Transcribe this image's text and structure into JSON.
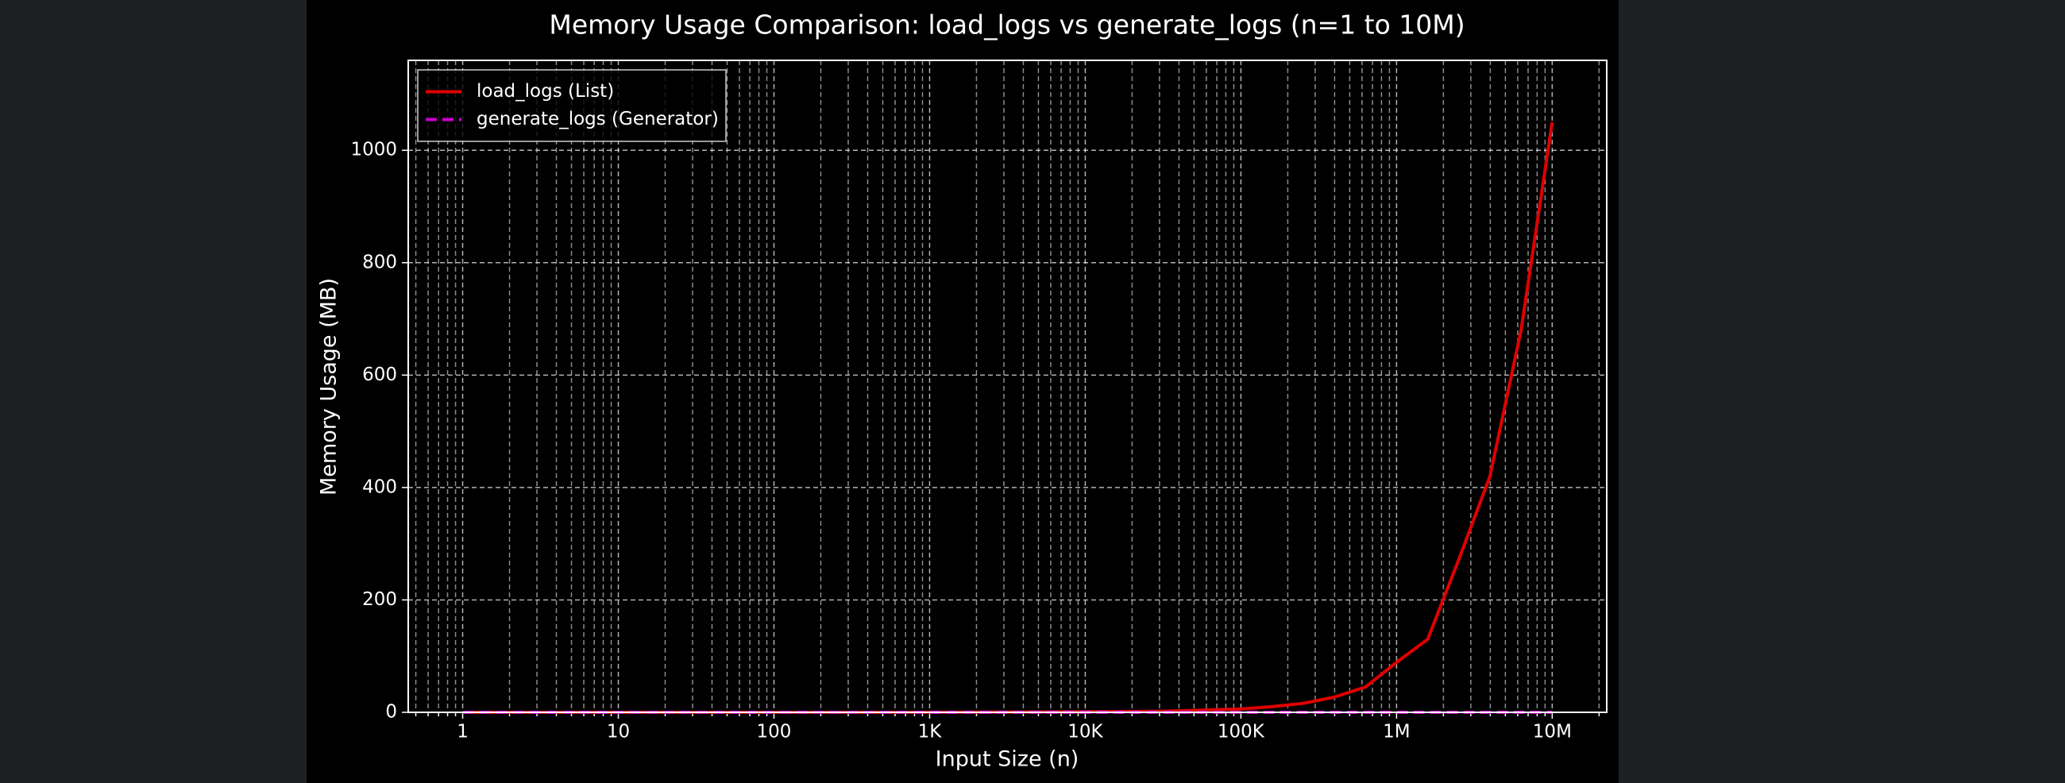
{
  "chart_data": {
    "type": "line",
    "title": "Memory Usage Comparison: load_logs vs generate_logs (n=1 to 10M)",
    "x_label": "Input Size (n)",
    "y_label": "Memory Usage (MB)",
    "xscale": "log",
    "x": [
      1,
      10,
      100,
      1000,
      10000,
      31623,
      100000,
      158489,
      251189,
      398107,
      630957,
      1000000,
      1584893,
      2511886,
      3981072,
      6309573,
      10000000
    ],
    "series": [
      {
        "name": "load_logs (List)",
        "color": "#e00000",
        "style": "solid",
        "values": [
          0,
          0,
          0,
          0.1,
          1,
          2,
          6,
          10,
          16,
          27,
          45,
          89,
          130,
          272,
          420,
          680,
          1050
        ]
      },
      {
        "name": "generate_logs (Generator)",
        "color": "#cc00cc",
        "style": "dashed",
        "values": [
          0,
          0,
          0,
          0,
          0,
          0,
          0,
          0,
          0,
          0,
          0,
          0,
          0,
          0,
          0,
          0,
          0
        ]
      }
    ],
    "xlim": [
      0.447,
      22400000
    ],
    "ylim": [
      0,
      1160
    ],
    "xticks": [
      1,
      10,
      100,
      {
        "value": 1000,
        "label": "1K"
      },
      {
        "value": 10000,
        "label": "10K"
      },
      {
        "value": 100000,
        "label": "100K"
      },
      {
        "value": 1000000,
        "label": "1M"
      },
      {
        "value": 10000000,
        "label": "10M"
      }
    ],
    "yticks": [
      0,
      200,
      400,
      600,
      800,
      1000
    ],
    "grid": true,
    "minor_grid": true,
    "legend": "upper left"
  }
}
